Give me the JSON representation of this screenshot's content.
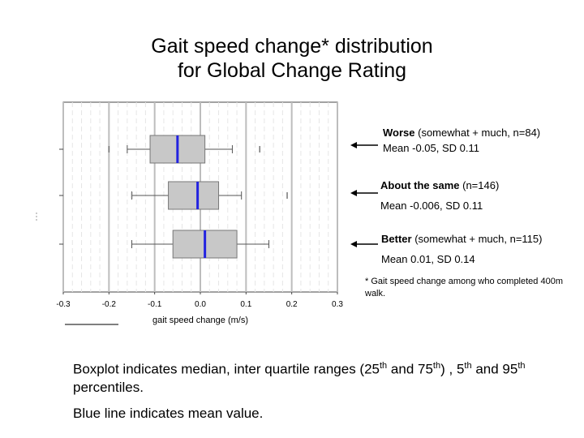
{
  "title": {
    "line1": "Gait speed change* distribution",
    "line2": "for Global Change Rating"
  },
  "chart_data": {
    "type": "boxplot",
    "orientation": "horizontal",
    "xlabel": "gait speed change (m/s)",
    "xlim": [
      -0.3,
      0.3
    ],
    "xticks": [
      "-0.3",
      "-0.2",
      "-0.1",
      "0.0",
      "0.1",
      "0.2",
      "0.3"
    ],
    "xtick_values": [
      -0.3,
      -0.2,
      -0.1,
      0.0,
      0.1,
      0.2,
      0.3
    ],
    "grid": true,
    "mean_line_color": "#2323e0",
    "box_color": "#c8c8c8",
    "groups": [
      {
        "name": "Worse",
        "whisker_low": -0.16,
        "q1": -0.11,
        "median": -0.05,
        "mean": -0.05,
        "q3": 0.01,
        "whisker_high": 0.07,
        "outliers": [
          -0.2,
          0.13
        ]
      },
      {
        "name": "About the same",
        "whisker_low": -0.15,
        "q1": -0.07,
        "median": -0.006,
        "mean": -0.006,
        "q3": 0.04,
        "whisker_high": 0.09,
        "outliers": [
          -0.15,
          0.19
        ]
      },
      {
        "name": "Better",
        "whisker_low": -0.15,
        "q1": -0.06,
        "median": 0.01,
        "mean": 0.01,
        "q3": 0.08,
        "whisker_high": 0.15,
        "outliers": []
      }
    ]
  },
  "annotations": [
    {
      "label": "Worse",
      "detail": " (somewhat + much, n=84)",
      "stats": "Mean -0.05, SD 0.11"
    },
    {
      "label": "About the same",
      "detail": " (n=146)",
      "stats": "Mean -0.006, SD 0.11"
    },
    {
      "label": "Better",
      "detail": " (somewhat + much, n=115)",
      "stats": "Mean 0.01, SD 0.14"
    }
  ],
  "footnote": "* Gait speed change among who completed 400m walk.",
  "caption": {
    "part1": "Boxplot indicates median, inter quartile ranges (25",
    "sup1": "th",
    "part2": " and 75",
    "sup2": "th",
    "part3": ") , 5",
    "sup3": "th",
    "part4": " and 95",
    "sup4": "th",
    "part5": " percentiles.",
    "line2": "Blue line indicates mean value."
  }
}
